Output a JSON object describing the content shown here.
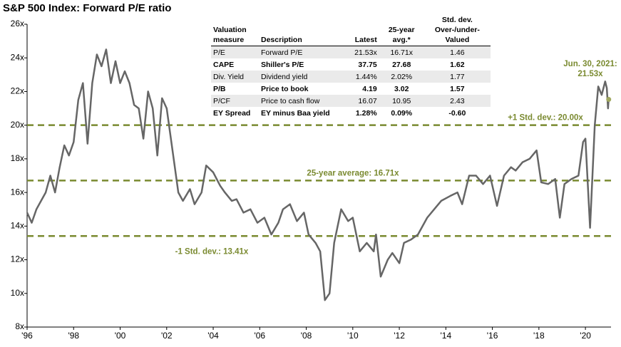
{
  "chart_data": {
    "type": "line",
    "title": "S&P 500 Index: Forward P/E ratio",
    "color": "#666666",
    "ref_color": "#7a8a30",
    "xlim": [
      1996,
      2021.1
    ],
    "ylim": [
      8,
      26
    ],
    "xticks": [
      {
        "value": 1996,
        "label": "'96"
      },
      {
        "value": 1998,
        "label": "'98"
      },
      {
        "value": 2000,
        "label": "'00"
      },
      {
        "value": 2002,
        "label": "'02"
      },
      {
        "value": 2004,
        "label": "'04"
      },
      {
        "value": 2006,
        "label": "'06"
      },
      {
        "value": 2008,
        "label": "'08"
      },
      {
        "value": 2010,
        "label": "'10"
      },
      {
        "value": 2012,
        "label": "'12"
      },
      {
        "value": 2014,
        "label": "'14"
      },
      {
        "value": 2016,
        "label": "'16"
      },
      {
        "value": 2018,
        "label": "'18"
      },
      {
        "value": 2020,
        "label": "'20"
      }
    ],
    "yticks": [
      {
        "value": 8,
        "label": "8x"
      },
      {
        "value": 10,
        "label": "10x"
      },
      {
        "value": 12,
        "label": "12x"
      },
      {
        "value": 14,
        "label": "14x"
      },
      {
        "value": 16,
        "label": "16x"
      },
      {
        "value": 18,
        "label": "18x"
      },
      {
        "value": 20,
        "label": "20x"
      },
      {
        "value": 22,
        "label": "22x"
      },
      {
        "value": 24,
        "label": "24x"
      },
      {
        "value": 26,
        "label": "26x"
      }
    ],
    "x": [
      1996.0,
      1996.2,
      1996.4,
      1996.6,
      1996.8,
      1997.0,
      1997.2,
      1997.4,
      1997.6,
      1997.8,
      1998.0,
      1998.2,
      1998.4,
      1998.6,
      1998.8,
      1999.0,
      1999.2,
      1999.4,
      1999.6,
      1999.8,
      2000.0,
      2000.2,
      2000.4,
      2000.6,
      2000.8,
      2001.0,
      2001.2,
      2001.4,
      2001.6,
      2001.8,
      2002.0,
      2002.3,
      2002.5,
      2002.7,
      2003.0,
      2003.2,
      2003.5,
      2003.7,
      2004.0,
      2004.3,
      2004.5,
      2004.8,
      2005.0,
      2005.3,
      2005.6,
      2005.9,
      2006.2,
      2006.5,
      2006.8,
      2007.0,
      2007.3,
      2007.6,
      2007.9,
      2008.1,
      2008.4,
      2008.6,
      2008.8,
      2009.0,
      2009.2,
      2009.5,
      2009.8,
      2010.0,
      2010.3,
      2010.6,
      2010.9,
      2011.0,
      2011.2,
      2011.5,
      2011.7,
      2012.0,
      2012.2,
      2012.5,
      2012.8,
      2013.2,
      2013.5,
      2013.8,
      2014.2,
      2014.5,
      2014.7,
      2015.0,
      2015.3,
      2015.6,
      2015.9,
      2016.2,
      2016.5,
      2016.8,
      2017.0,
      2017.3,
      2017.6,
      2017.9,
      2018.1,
      2018.4,
      2018.7,
      2018.9,
      2019.1,
      2019.4,
      2019.7,
      2019.9,
      2020.0,
      2020.2,
      2020.4,
      2020.55,
      2020.7,
      2020.85,
      2020.92,
      2020.97,
      2021.0
    ],
    "values": [
      14.8,
      14.2,
      15.0,
      15.5,
      16.0,
      17.0,
      16.0,
      17.5,
      18.8,
      18.2,
      19.0,
      21.5,
      22.5,
      18.9,
      22.5,
      24.2,
      23.5,
      24.5,
      22.5,
      23.8,
      22.5,
      23.2,
      22.5,
      21.2,
      21.0,
      19.2,
      22.0,
      21.0,
      18.2,
      21.6,
      21.0,
      18.0,
      16.0,
      15.5,
      16.2,
      15.3,
      16.0,
      17.6,
      17.2,
      16.4,
      16.0,
      15.5,
      15.6,
      14.8,
      15.0,
      14.2,
      14.5,
      13.5,
      14.2,
      15.0,
      15.3,
      14.3,
      14.8,
      13.5,
      13.0,
      12.5,
      9.6,
      10.0,
      13.0,
      15.0,
      14.3,
      14.5,
      12.5,
      13.0,
      12.5,
      13.5,
      11.0,
      12.0,
      12.4,
      11.8,
      13.0,
      13.2,
      13.5,
      14.5,
      15.0,
      15.5,
      15.8,
      16.0,
      15.3,
      17.0,
      17.0,
      16.5,
      17.0,
      15.2,
      17.0,
      17.5,
      17.3,
      17.8,
      18.0,
      18.5,
      16.6,
      16.5,
      16.8,
      14.5,
      16.5,
      16.8,
      17.0,
      19.0,
      19.2,
      13.9,
      20.0,
      22.3,
      21.8,
      22.6,
      22.2,
      21.0,
      21.53
    ],
    "reference_lines": [
      {
        "value": 20.0,
        "label": "+1 Std. dev.: 20.00x"
      },
      {
        "value": 16.71,
        "label": "25-year average: 16.71x"
      },
      {
        "value": 13.41,
        "label": "-1 Std. dev.: 13.41x"
      }
    ],
    "annotation": [
      "Jun. 30, 2021:",
      "21.53x"
    ]
  },
  "table": {
    "headers": [
      "Valuation measure",
      "Description",
      "Latest",
      "25-year avg.*",
      "Std. dev. Over-/under-Valued"
    ],
    "rows": [
      [
        "P/E",
        "Forward P/E",
        "21.53x",
        "16.71x",
        "1.46"
      ],
      [
        "CAPE",
        "Shiller's P/E",
        "37.75",
        "27.68",
        "1.62"
      ],
      [
        "Div. Yield",
        "Dividend yield",
        "1.44%",
        "2.02%",
        "1.77"
      ],
      [
        "P/B",
        "Price to book",
        "4.19",
        "3.02",
        "1.57"
      ],
      [
        "P/CF",
        "Price to cash flow",
        "16.07",
        "10.95",
        "2.43"
      ],
      [
        "EY Spread",
        "EY minus Baa yield",
        "1.28%",
        "0.09%",
        "-0.60"
      ]
    ]
  }
}
